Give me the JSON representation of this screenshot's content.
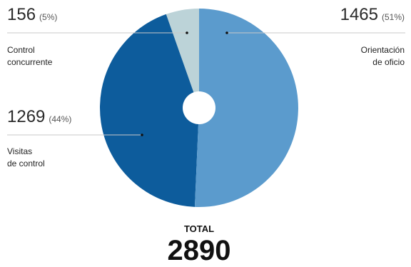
{
  "chart_data": {
    "type": "pie",
    "categories": [
      "Control concurrente",
      "Visitas de control",
      "Orientación de oficio"
    ],
    "values": [
      156,
      1269,
      1465
    ],
    "percent_labels": [
      "(5%)",
      "(44%)",
      "(51%)"
    ],
    "label_lines": [
      [
        "Control",
        "concurrente"
      ],
      [
        "Visitas",
        "de control"
      ],
      [
        "Orientación",
        "de oficio"
      ]
    ],
    "colors": [
      "#bcd3d8",
      "#0d5c9c",
      "#5b9bcd"
    ],
    "total_label": "TOTAL",
    "total_value": "2890",
    "title": "",
    "legend": "none"
  }
}
